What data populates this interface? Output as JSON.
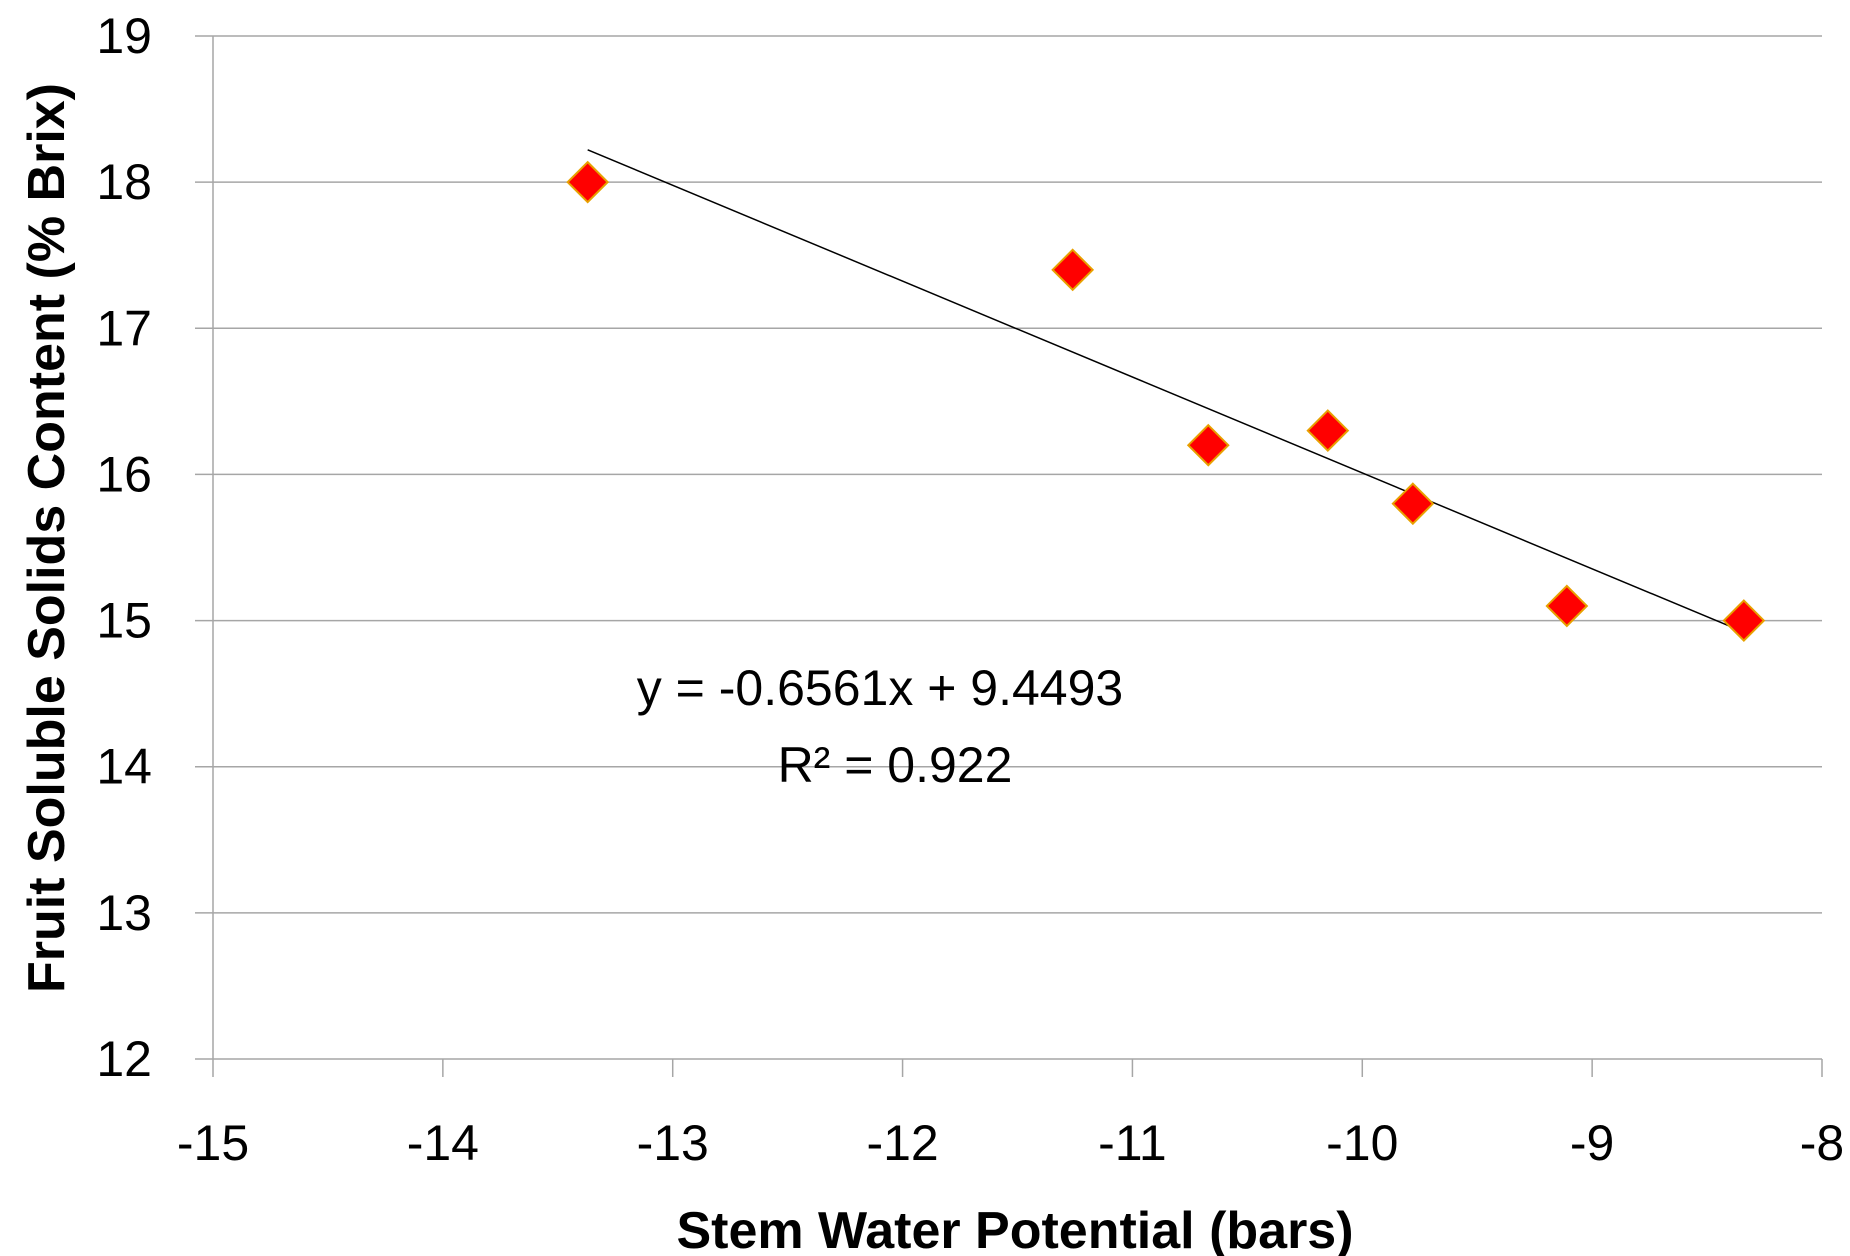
{
  "chart_data": {
    "type": "scatter",
    "title": "",
    "xlabel": "Stem Water Potential (bars)",
    "ylabel": "Fruit Soluble Solids Content (% Brix)",
    "xlim": [
      -15,
      -8
    ],
    "ylim": [
      12,
      19
    ],
    "x_ticks": [
      "-15",
      "-14",
      "-13",
      "-12",
      "-11",
      "-10",
      "-9",
      "-8"
    ],
    "y_ticks": [
      "12",
      "13",
      "14",
      "15",
      "16",
      "17",
      "18",
      "19"
    ],
    "grid": "horizontal",
    "series": [
      {
        "marker": "diamond",
        "color": "#ff0000",
        "edge_color": "#e8a000",
        "points": [
          {
            "x": -13.37,
            "y": 18.0
          },
          {
            "x": -11.26,
            "y": 17.4
          },
          {
            "x": -10.67,
            "y": 16.2
          },
          {
            "x": -10.15,
            "y": 16.3
          },
          {
            "x": -9.78,
            "y": 15.8
          },
          {
            "x": -9.11,
            "y": 15.1
          },
          {
            "x": -8.34,
            "y": 15.0
          }
        ]
      }
    ],
    "trendline": {
      "slope": -0.6561,
      "intercept": 9.4493,
      "x_start": -13.37,
      "x_end": -8.34,
      "color": "#000000"
    },
    "annotations": [
      {
        "text": "y = -0.6561x + 9.4493"
      },
      {
        "text": "R² = 0.922"
      }
    ]
  }
}
